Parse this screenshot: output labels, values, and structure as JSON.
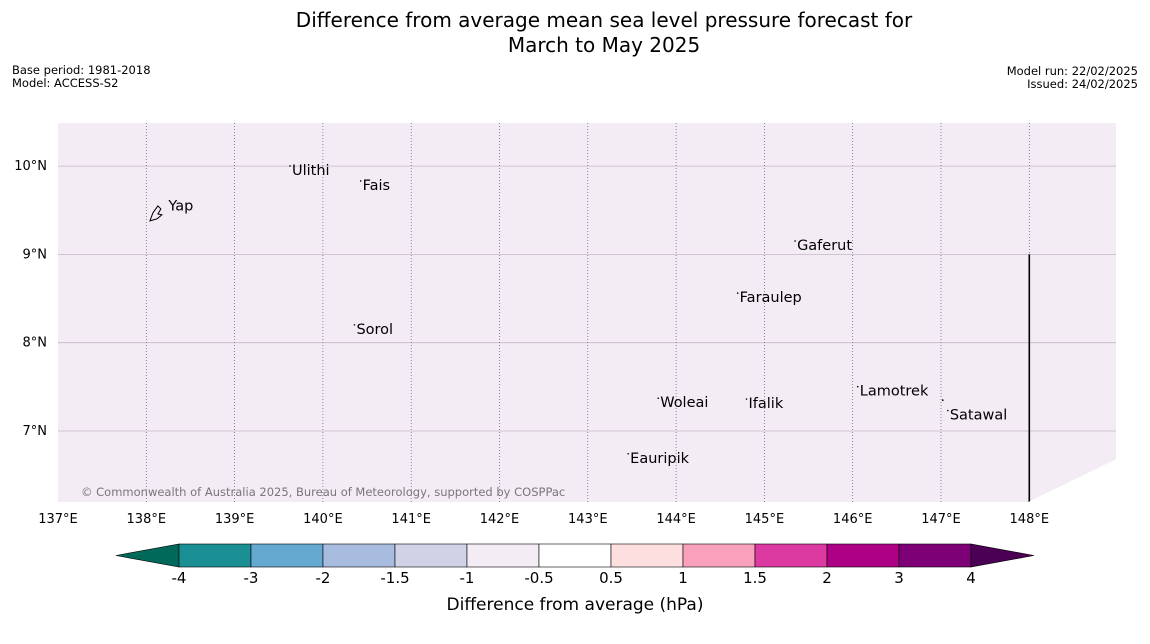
{
  "title": {
    "line1": "Difference from average mean sea level pressure forecast for",
    "line2": "March to May 2025"
  },
  "meta": {
    "base_period": "Base period: 1981-2018",
    "model": "Model: ACCESS-S2",
    "model_run": "Model run: 22/02/2025",
    "issued": "Issued: 24/02/2025"
  },
  "map": {
    "fill_color": "#f4ecf5",
    "lon_range": [
      137,
      149
    ],
    "lat_range": [
      6.2,
      10.5
    ],
    "lon_ticks": [
      137,
      138,
      139,
      140,
      141,
      142,
      143,
      144,
      145,
      146,
      147,
      148
    ],
    "lon_tick_labels": [
      "137°E",
      "138°E",
      "139°E",
      "140°E",
      "141°E",
      "142°E",
      "143°E",
      "144°E",
      "145°E",
      "146°E",
      "147°E",
      "148°E"
    ],
    "lat_ticks": [
      7,
      8,
      9,
      10
    ],
    "lat_tick_labels": [
      "7°N",
      "8°N",
      "9°N",
      "10°N"
    ],
    "places": [
      {
        "name": "Yap",
        "lon": 138.25,
        "lat": 9.5
      },
      {
        "name": "Ulithi",
        "lon": 139.65,
        "lat": 9.9
      },
      {
        "name": "Fais",
        "lon": 140.45,
        "lat": 9.73
      },
      {
        "name": "Sorol",
        "lon": 140.38,
        "lat": 8.1
      },
      {
        "name": "Gaferut",
        "lon": 145.37,
        "lat": 9.05
      },
      {
        "name": "Faraulep",
        "lon": 144.72,
        "lat": 8.46
      },
      {
        "name": "Woleai",
        "lon": 143.82,
        "lat": 7.27
      },
      {
        "name": "Ifalik",
        "lon": 144.82,
        "lat": 7.26
      },
      {
        "name": "Lamotrek",
        "lon": 146.08,
        "lat": 7.4
      },
      {
        "name": "Satawal",
        "lon": 147.1,
        "lat": 7.13
      },
      {
        "name": "Eauripik",
        "lon": 143.48,
        "lat": 6.64
      }
    ],
    "boundary_lon": 148,
    "boundary_lat_top": 9.0,
    "copyright": "© Commonwealth of Australia 2025, Bureau of Meteorology, supported by COSPPac"
  },
  "colorbar": {
    "label": "Difference from average (hPa)",
    "tick_labels": [
      "-4",
      "-3",
      "-2",
      "-1.5",
      "-1",
      "-0.5",
      "0.5",
      "1",
      "1.5",
      "2",
      "3",
      "4"
    ],
    "extend_min_color": "#00695a",
    "extend_max_color": "#4b0055",
    "bins": [
      {
        "from": "-4",
        "to": "-3",
        "color": "#1a8f94"
      },
      {
        "from": "-3",
        "to": "-2",
        "color": "#65a8d0"
      },
      {
        "from": "-2",
        "to": "-1.5",
        "color": "#a7bcdf"
      },
      {
        "from": "-1.5",
        "to": "-1",
        "color": "#d0d2e6"
      },
      {
        "from": "-1",
        "to": "-0.5",
        "color": "#f4ecf5"
      },
      {
        "from": "-0.5",
        "to": "0.5",
        "color": "#ffffff"
      },
      {
        "from": "0.5",
        "to": "1",
        "color": "#fddfe0"
      },
      {
        "from": "1",
        "to": "1.5",
        "color": "#f9a0bc"
      },
      {
        "from": "1.5",
        "to": "2",
        "color": "#dc3aa0"
      },
      {
        "from": "2",
        "to": "3",
        "color": "#ad0084"
      },
      {
        "from": "3",
        "to": "4",
        "color": "#7d0077"
      }
    ]
  }
}
